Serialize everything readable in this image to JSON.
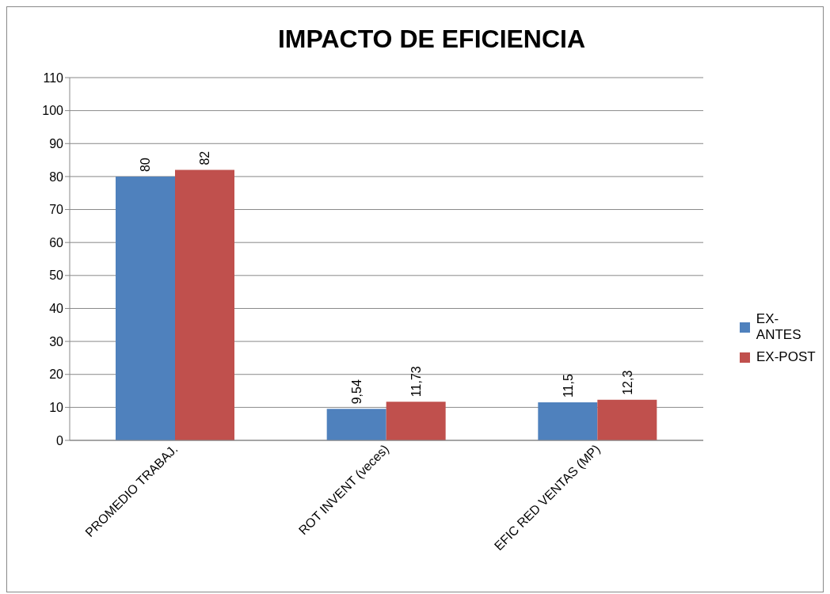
{
  "chart_data": {
    "type": "bar",
    "title": "IMPACTO DE EFICIENCIA",
    "categories": [
      "PROMEDIO TRABAJ.",
      "ROT INVENT (veces)",
      "EFIC RED VENTAS (MP)"
    ],
    "series": [
      {
        "name": "EX-ANTES",
        "color": "#4f81bd",
        "values": [
          80,
          9.54,
          11.5
        ],
        "value_labels": [
          "80",
          "9,54",
          "11,5"
        ]
      },
      {
        "name": "EX-POST",
        "color": "#c0504d",
        "values": [
          82,
          11.73,
          12.3
        ],
        "value_labels": [
          "82",
          "11,73",
          "12,3"
        ]
      }
    ],
    "ylim": [
      0,
      110
    ],
    "yticks": [
      0,
      10,
      20,
      30,
      40,
      50,
      60,
      70,
      80,
      90,
      100,
      110
    ],
    "grid": "y",
    "legend": "right"
  }
}
